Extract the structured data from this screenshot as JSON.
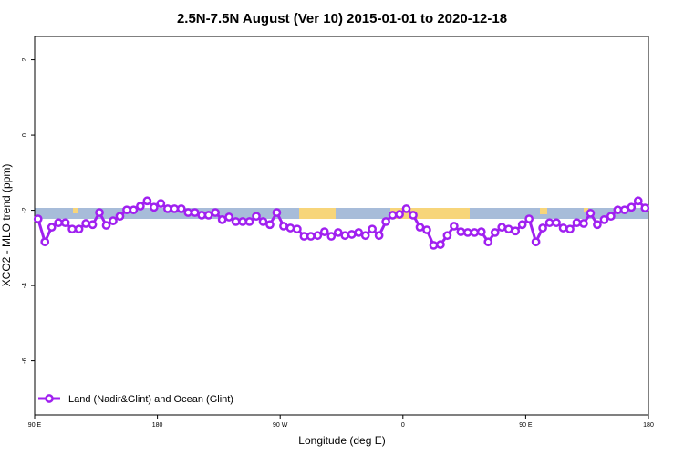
{
  "chart_data": {
    "type": "line",
    "title": "2.5N-7.5N August (Ver 10)   2015-01-01 to 2020-12-18",
    "x_label": "Longitude (deg E)",
    "y_label": "XCO2 - MLO trend (ppm)",
    "xlim": [
      90,
      540
    ],
    "ylim": [
      -7.44,
      2.62
    ],
    "xticks": [
      {
        "value": 90,
        "label": "90 E"
      },
      180,
      {
        "value": 270,
        "label": "90 W"
      },
      {
        "value": 360,
        "label": "0"
      },
      {
        "value": 450,
        "label": "90 E"
      },
      {
        "value": 540,
        "label": "180"
      }
    ],
    "yticks": [
      2,
      0,
      -2,
      -4,
      -6
    ],
    "legend": "bottom-left",
    "x": [
      92.5,
      97.5,
      102.5,
      107.5,
      112.5,
      117.5,
      122.5,
      127.5,
      132.5,
      137.5,
      142.5,
      147.5,
      152.5,
      157.5,
      162.5,
      167.5,
      172.5,
      177.5,
      182.5,
      187.5,
      192.5,
      197.5,
      202.5,
      207.5,
      212.5,
      217.5,
      222.5,
      227.5,
      232.5,
      237.5,
      242.5,
      247.5,
      252.5,
      257.5,
      262.5,
      267.5,
      272.5,
      277.5,
      282.5,
      287.5,
      292.5,
      297.5,
      302.5,
      307.5,
      312.5,
      317.5,
      322.5,
      327.5,
      332.5,
      337.5,
      342.5,
      347.5,
      352.5,
      357.5,
      362.5,
      367.5,
      372.5,
      377.5,
      382.5,
      387.5,
      392.5,
      397.5,
      402.5,
      407.5,
      412.5,
      417.5,
      422.5,
      427.5,
      432.5,
      437.5,
      442.5,
      447.5,
      452.5,
      457.5,
      462.5,
      467.5,
      472.5,
      477.5,
      482.5,
      487.5,
      492.5,
      497.5,
      502.5,
      507.5,
      512.5,
      517.5,
      522.5,
      527.5,
      532.5,
      537.5
    ],
    "series": [
      {
        "name": "Land (Nadir&Glint) and Ocean (Glint)",
        "color": "#a020f0",
        "values": [
          -2.23,
          -2.84,
          -2.45,
          -2.33,
          -2.33,
          -2.5,
          -2.5,
          -2.35,
          -2.38,
          -2.06,
          -2.4,
          -2.28,
          -2.16,
          -1.99,
          -1.99,
          -1.89,
          -1.75,
          -1.92,
          -1.82,
          -1.96,
          -1.96,
          -1.96,
          -2.06,
          -2.06,
          -2.13,
          -2.13,
          -2.06,
          -2.25,
          -2.18,
          -2.3,
          -2.3,
          -2.3,
          -2.16,
          -2.3,
          -2.38,
          -2.06,
          -2.42,
          -2.47,
          -2.5,
          -2.69,
          -2.69,
          -2.67,
          -2.57,
          -2.69,
          -2.59,
          -2.67,
          -2.64,
          -2.59,
          -2.67,
          -2.5,
          -2.67,
          -2.3,
          -2.13,
          -2.11,
          -1.96,
          -2.13,
          -2.45,
          -2.52,
          -2.93,
          -2.91,
          -2.67,
          -2.42,
          -2.57,
          -2.59,
          -2.59,
          -2.57,
          -2.84,
          -2.59,
          -2.45,
          -2.5,
          -2.55,
          -2.38,
          -2.23,
          -2.84,
          -2.47,
          -2.33,
          -2.33,
          -2.47,
          -2.5,
          -2.33,
          -2.35,
          -2.08,
          -2.38,
          -2.25,
          -2.16,
          -1.99,
          -1.99,
          -1.92,
          -1.75,
          -1.94
        ]
      }
    ]
  }
}
